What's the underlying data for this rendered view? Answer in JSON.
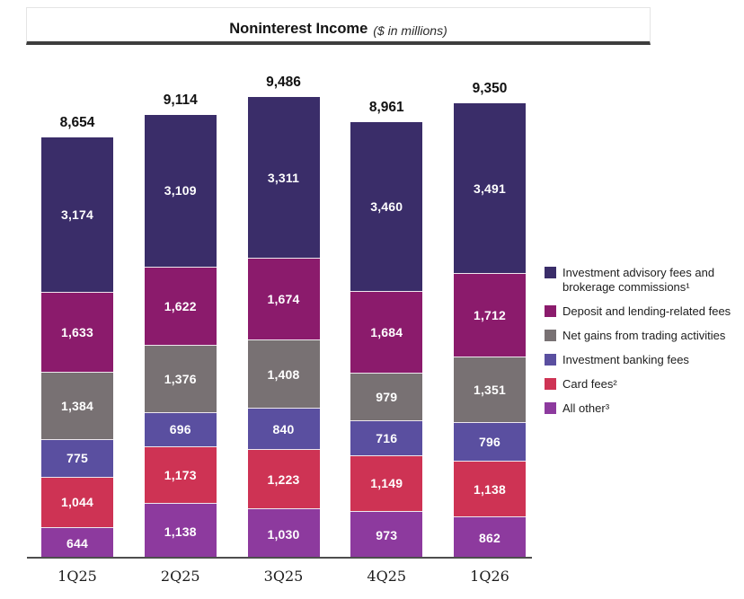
{
  "title": {
    "main": "Noninterest Income",
    "unit_note": "($ in millions)"
  },
  "chart_data": {
    "type": "bar",
    "stacked": true,
    "title": "Noninterest Income ($ in millions)",
    "xlabel": "",
    "ylabel": "",
    "grid": false,
    "legend_position": "right",
    "ylim": [
      0,
      9486
    ],
    "categories": [
      "1Q25",
      "2Q25",
      "3Q25",
      "4Q25",
      "1Q26"
    ],
    "totals": [
      8654,
      9114,
      9486,
      8961,
      9350
    ],
    "series": [
      {
        "name": "Investment advisory fees and brokerage commissions¹",
        "color": "#3a2d69",
        "values": [
          3174,
          3109,
          3311,
          3460,
          3491
        ]
      },
      {
        "name": "Deposit and lending-related fees",
        "color": "#8b1b6c",
        "values": [
          1633,
          1622,
          1674,
          1684,
          1712
        ]
      },
      {
        "name": "Net gains from trading activities",
        "color": "#787173",
        "values": [
          1384,
          1376,
          1408,
          979,
          1351
        ]
      },
      {
        "name": "Investment banking fees",
        "color": "#5a4fa0",
        "values": [
          775,
          696,
          840,
          716,
          796
        ]
      },
      {
        "name": "Card fees²",
        "color": "#ce3354",
        "values": [
          1044,
          1173,
          1223,
          1149,
          1138
        ]
      },
      {
        "name": "All other³",
        "color": "#8d3a9e",
        "values": [
          644,
          1138,
          1030,
          973,
          862
        ]
      }
    ]
  }
}
